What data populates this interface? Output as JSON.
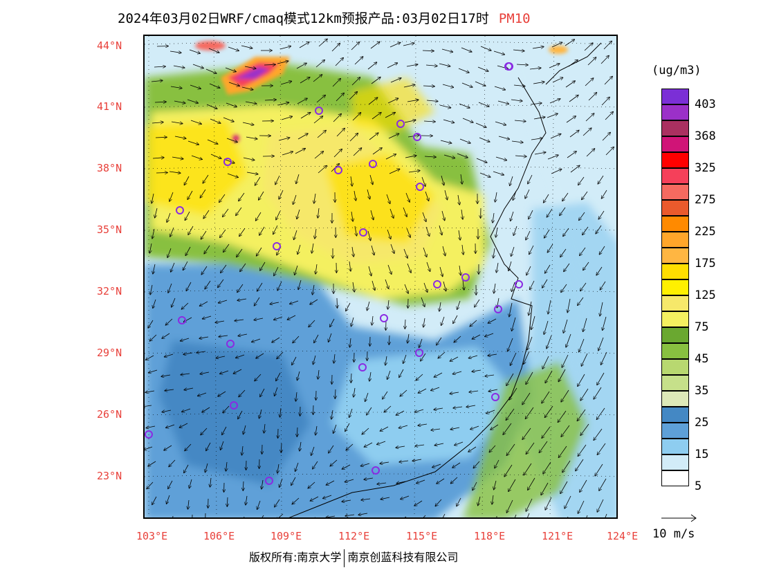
{
  "title": {
    "text": "2024年03月02日WRF/cmaq模式12km预报产品:03月02日17时",
    "pollutant": "PM10",
    "pollutant_color": "#e8403a"
  },
  "map": {
    "lat_labels": [
      "44°N",
      "41°N",
      "38°N",
      "35°N",
      "32°N",
      "29°N",
      "26°N",
      "23°N"
    ],
    "lon_labels": [
      "103°E",
      "106°E",
      "109°E",
      "112°E",
      "115°E",
      "118°E",
      "121°E",
      "124°E"
    ],
    "stations_marker_color": "#8a2be2"
  },
  "legend": {
    "units": "(ug/m3)",
    "labels": [
      "403",
      "368",
      "325",
      "275",
      "225",
      "175",
      "125",
      "75",
      "45",
      "35",
      "25",
      "15",
      "5"
    ],
    "colors": [
      "#7b2fd6",
      "#9b30c8",
      "#aa3060",
      "#d01477",
      "#ff0000",
      "#f5405a",
      "#f56a60",
      "#ea5a2c",
      "#ff8a00",
      "#ffa62a",
      "#ffb642",
      "#ffde00",
      "#fff000",
      "#f6e86a",
      "#f4f060",
      "#6aa830",
      "#88c040",
      "#b8d870",
      "#c6e08a",
      "#dde8b8",
      "#4488c4",
      "#5ea0d8",
      "#8ecdf0",
      "#d2ecf8",
      "#ffffff"
    ]
  },
  "wind_reference": {
    "label": "10 m/s"
  },
  "credit": {
    "left": "版权所有:南京大学",
    "right": "南京创蓝科技有限公司"
  }
}
